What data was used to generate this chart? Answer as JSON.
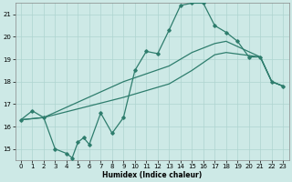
{
  "xlabel": "Humidex (Indice chaleur)",
  "xlim": [
    -0.5,
    23.5
  ],
  "ylim": [
    14.5,
    21.5
  ],
  "xticks": [
    0,
    1,
    2,
    3,
    4,
    5,
    6,
    7,
    8,
    9,
    10,
    11,
    12,
    13,
    14,
    15,
    16,
    17,
    18,
    19,
    20,
    21,
    22,
    23
  ],
  "yticks": [
    15,
    16,
    17,
    18,
    19,
    20,
    21
  ],
  "bg_color": "#cde9e6",
  "grid_color": "#aed4d0",
  "line_color": "#2e7d6d",
  "main_x": [
    0,
    1,
    2,
    3,
    4,
    4.5,
    5,
    5.5,
    6,
    7,
    8,
    9,
    10,
    11,
    12,
    13,
    14,
    15,
    16,
    17,
    18,
    19,
    20,
    21,
    22,
    23
  ],
  "main_y": [
    16.3,
    16.7,
    16.4,
    15.0,
    14.8,
    14.6,
    15.3,
    15.5,
    15.2,
    16.6,
    15.7,
    16.4,
    18.5,
    19.35,
    19.25,
    20.3,
    21.4,
    21.5,
    21.5,
    20.5,
    20.2,
    19.8,
    19.1,
    19.1,
    18.0,
    17.8
  ],
  "upper_x": [
    0,
    2,
    9,
    13,
    15,
    17,
    18,
    21,
    22,
    23
  ],
  "upper_y": [
    16.3,
    16.4,
    18.0,
    18.7,
    19.3,
    19.7,
    19.8,
    19.1,
    18.0,
    17.8
  ],
  "lower_x": [
    0,
    2,
    9,
    13,
    15,
    17,
    18,
    21,
    22,
    23
  ],
  "lower_y": [
    16.3,
    16.4,
    17.3,
    17.9,
    18.5,
    19.2,
    19.3,
    19.1,
    18.0,
    17.8
  ]
}
